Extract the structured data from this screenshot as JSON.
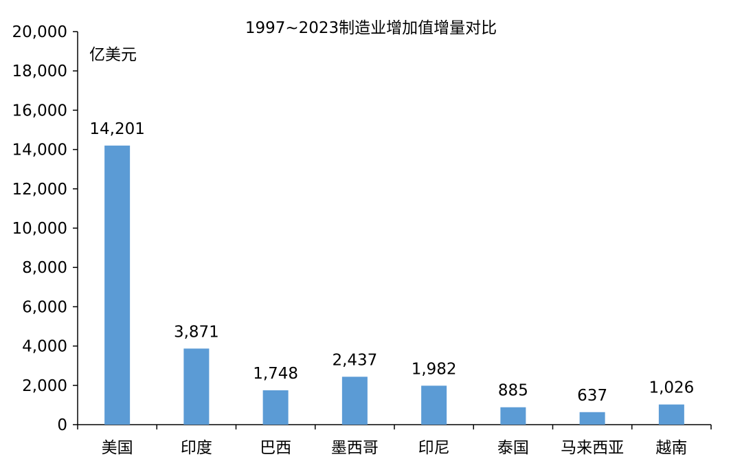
{
  "chart_data": {
    "type": "bar",
    "title": "1997~2023制造业增加值增量对比",
    "unit_label": "亿美元",
    "xlabel": "",
    "ylabel": "",
    "ylim": [
      0,
      20000
    ],
    "yticks": [
      0,
      2000,
      4000,
      6000,
      8000,
      10000,
      12000,
      14000,
      16000,
      18000,
      20000
    ],
    "ytick_labels": [
      "0",
      "2,000",
      "4,000",
      "6,000",
      "8,000",
      "10,000",
      "12,000",
      "14,000",
      "16,000",
      "18,000",
      "20,000"
    ],
    "categories": [
      "美国",
      "印度",
      "巴西",
      "墨西哥",
      "印尼",
      "泰国",
      "马来西亚",
      "越南"
    ],
    "values": [
      14201,
      3871,
      1748,
      2437,
      1982,
      885,
      637,
      1026
    ],
    "value_labels": [
      "14,201",
      "3,871",
      "1,748",
      "2,437",
      "1,982",
      "885",
      "637",
      "1,026"
    ],
    "bar_color": "#5B9BD5",
    "grid": false,
    "legend": "none"
  }
}
